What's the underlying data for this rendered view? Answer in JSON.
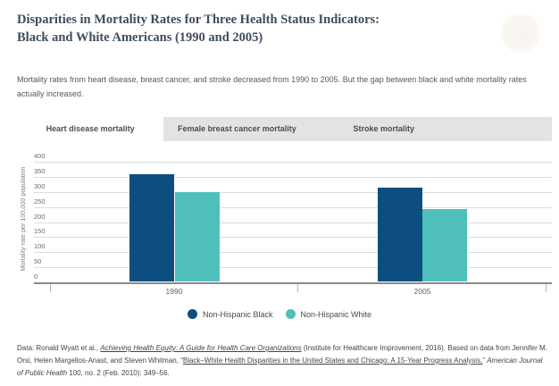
{
  "page": {
    "title_line1": "Disparities in Mortality Rates for Three Health Status Indicators:",
    "title_line2": "Black and White Americans (1990 and 2005)",
    "subtitle": "Mortality rates from heart disease, breast cancer, and stroke decreased from 1990 to 2005. But the gap between black and white mortality rates actually increased."
  },
  "tabs": [
    {
      "label": "Heart disease mortality",
      "active": true
    },
    {
      "label": "Female breast cancer mortality",
      "active": false
    },
    {
      "label": "Stroke mortality",
      "active": false
    }
  ],
  "chart_data": {
    "type": "bar",
    "title": "Heart disease mortality",
    "categories": [
      "1990",
      "2005"
    ],
    "series": [
      {
        "name": "Non-Hispanic Black",
        "color": "#0d4e80",
        "values": [
          355,
          295
        ]
      },
      {
        "name": "Non-Hispanic White",
        "color": "#4fbfbc",
        "values": [
          310,
          240
        ]
      }
    ],
    "note_series_order": "values listed per category group: series[0]=Black [1990,2005] -> [355,310]; series[1]=White -> [295,240]",
    "black_values": [
      355,
      310
    ],
    "white_values": [
      295,
      240
    ],
    "ylabel": "Mortality rate per 100,000 population",
    "xlabel": "",
    "ylim": [
      0,
      400
    ],
    "yticks": [
      400,
      350,
      300,
      250,
      200,
      150,
      100,
      50,
      0
    ],
    "grid": true,
    "legend_position": "bottom"
  },
  "footer": {
    "seg1": "Data: Ronald Wyatt et al., ",
    "seg2": "Achieving Health Equity: A Guide for Health Care Organizations",
    "seg3": " (Institute for Healthcare Improvement, 2016). Based on data from Jennifer M. Orsi, Helen Margellos-Anast, and Steven Whitman, “",
    "seg4": "Black–White Health Disparities in the United States and Chicago: A 15-Year Progress Analysis,",
    "seg5": "” ",
    "seg6": "American Journal of Public Health",
    "seg7": " 100, no. 2 (Feb. 2010): 349–56."
  },
  "colors": {
    "bar_black": "#0d4e80",
    "bar_white": "#4fbfbc",
    "title_text": "#3e4c5c",
    "tab_inactive_bg": "#e3e3e3",
    "gridline": "#dcdcdc",
    "axis": "#8a8a8a"
  }
}
